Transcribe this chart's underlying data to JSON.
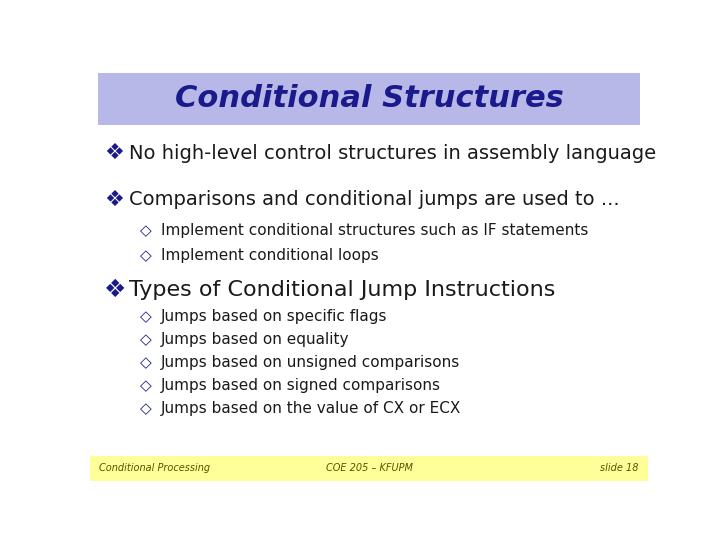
{
  "title": "Conditional Structures",
  "title_color": "#1a1a8c",
  "title_bg_color": "#b8b8e8",
  "slide_bg_color": "#ffffff",
  "footer_bg_color": "#ffff99",
  "body_text_color": "#1a1a1a",
  "bullet_color": "#1a1a8c",
  "footer_text_color": "#555500",
  "bullet1_symbol": "❖",
  "bullet2_symbol": "◇",
  "main_bullets": [
    "No high-level control structures in assembly language",
    "Comparisons and conditional jumps are used to ...",
    "Types of Conditional Jump Instructions"
  ],
  "sub_bullets_2": [
    "Implement conditional structures such as IF statements",
    "Implement conditional loops"
  ],
  "sub_bullets_3": [
    "Jumps based on specific flags",
    "Jumps based on equality",
    "Jumps based on unsigned comparisons",
    "Jumps based on signed comparisons",
    "Jumps based on the value of CX or ECX"
  ],
  "footer_left": "Conditional Processing",
  "footer_center": "COE 205 – KFUPM",
  "footer_right": "slide 18",
  "title_fontsize": 22,
  "main_fontsize": 14,
  "sub_fontsize": 11,
  "main3_fontsize": 16
}
